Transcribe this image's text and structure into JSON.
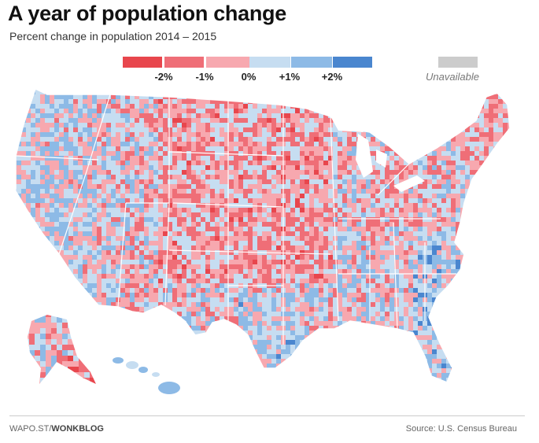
{
  "header": {
    "title": "A year of population change",
    "subtitle": "Percent change in population 2014 – 2015"
  },
  "legend": {
    "bins": [
      {
        "color": "#e8464d"
      },
      {
        "color": "#ef6e77"
      },
      {
        "color": "#f7a8af"
      },
      {
        "color": "#c6ddf1"
      },
      {
        "color": "#8dbae6"
      },
      {
        "color": "#4a86cf"
      }
    ],
    "ticks": [
      "-2%",
      "-1%",
      "0%",
      "+1%",
      "+2%"
    ],
    "unavailable_label": "Unavailable",
    "unavailable_color": "#cccccc"
  },
  "footer": {
    "credit_prefix": "WAPO.ST/",
    "credit_brand": "WONKBLOG",
    "source": "Source: U.S. Census Bureau"
  }
}
